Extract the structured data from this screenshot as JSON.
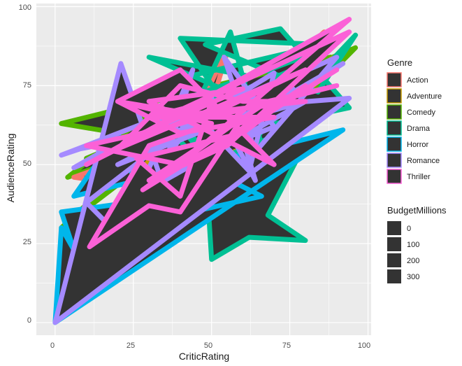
{
  "chart_data": {
    "type": "polygon",
    "xlabel": "CriticRating",
    "ylabel": "AudienceRating",
    "xlim": [
      -6,
      101
    ],
    "ylim": [
      -4,
      101
    ],
    "x_ticks": [
      0,
      25,
      50,
      75,
      100
    ],
    "y_ticks": [
      0,
      25,
      50,
      75,
      100
    ],
    "x_tick_labels": [
      "0",
      "25",
      "50",
      "75",
      "100"
    ],
    "y_tick_labels": [
      "0",
      "25",
      "50",
      "75",
      "100"
    ],
    "grid": true,
    "panel_background": "#ebebeb",
    "fill_color": "#333333",
    "legends": {
      "genre": {
        "title": "Genre",
        "position": "right",
        "entries": [
          {
            "label": "Action",
            "color": "#F8766D"
          },
          {
            "label": "Adventure",
            "color": "#C49A00"
          },
          {
            "label": "Comedy",
            "color": "#53B400"
          },
          {
            "label": "Drama",
            "color": "#00C094"
          },
          {
            "label": "Horror",
            "color": "#00B6EB"
          },
          {
            "label": "Romance",
            "color": "#A58AFF"
          },
          {
            "label": "Thriller",
            "color": "#FB61D7"
          }
        ]
      },
      "budget": {
        "title": "BudgetMillions",
        "position": "right",
        "entries": [
          "0",
          "100",
          "200",
          "300"
        ]
      }
    },
    "series": [
      {
        "name": "Comedy",
        "color": "#53B400",
        "points": [
          [
            2,
            63
          ],
          [
            20,
            60
          ],
          [
            40,
            76
          ],
          [
            62,
            66
          ],
          [
            4,
            46
          ],
          [
            30,
            66
          ],
          [
            55,
            60
          ],
          [
            85,
            88
          ],
          [
            12,
            40
          ],
          [
            45,
            55
          ],
          [
            70,
            61
          ],
          [
            96,
            87
          ],
          [
            10,
            52
          ],
          [
            60,
            70
          ],
          [
            80,
            62
          ],
          [
            24,
            48
          ],
          [
            50,
            74
          ],
          [
            2,
            30
          ],
          [
            35,
            55
          ],
          [
            72,
            68
          ],
          [
            16,
            42
          ],
          [
            88,
            84
          ]
        ]
      },
      {
        "name": "Action",
        "color": "#F8766D",
        "points": [
          [
            16,
            19
          ],
          [
            30,
            45
          ],
          [
            46,
            56
          ],
          [
            56,
            89
          ],
          [
            34,
            42
          ],
          [
            64,
            59
          ],
          [
            84,
            88
          ],
          [
            20,
            44
          ],
          [
            6,
            46
          ],
          [
            54,
            63
          ],
          [
            86,
            92
          ],
          [
            40,
            50
          ],
          [
            70,
            71
          ],
          [
            90,
            89
          ]
        ]
      },
      {
        "name": "Adventure",
        "color": "#C49A00",
        "points": [
          [
            24,
            41
          ],
          [
            40,
            69
          ],
          [
            62,
            74
          ],
          [
            82,
            84
          ],
          [
            48,
            56
          ],
          [
            92,
            86
          ],
          [
            68,
            58
          ],
          [
            32,
            45
          ],
          [
            76,
            70
          ],
          [
            56,
            72
          ],
          [
            88,
            80
          ],
          [
            44,
            53
          ]
        ]
      },
      {
        "name": "Drama",
        "color": "#00C094",
        "points": [
          [
            42,
            62
          ],
          [
            56,
            92
          ],
          [
            68,
            49
          ],
          [
            40,
            90
          ],
          [
            86,
            88
          ],
          [
            30,
            75
          ],
          [
            48,
            52
          ],
          [
            50,
            20
          ],
          [
            62,
            27
          ],
          [
            80,
            26
          ],
          [
            68,
            34
          ],
          [
            78,
            53
          ],
          [
            48,
            42
          ],
          [
            44,
            30
          ],
          [
            28,
            28
          ],
          [
            46,
            58
          ],
          [
            62,
            78
          ],
          [
            30,
            84
          ],
          [
            72,
            66
          ],
          [
            96,
            91
          ],
          [
            84,
            73
          ],
          [
            48,
            88
          ],
          [
            72,
            93
          ],
          [
            94,
            68
          ],
          [
            56,
            60
          ],
          [
            76,
            80
          ],
          [
            36,
            64
          ],
          [
            58,
            49
          ],
          [
            74,
            72
          ],
          [
            82,
            67
          ],
          [
            70,
            59
          ],
          [
            48,
            50
          ],
          [
            36,
            61
          ],
          [
            60,
            77
          ],
          [
            82,
            85
          ],
          [
            42,
            71
          ]
        ]
      },
      {
        "name": "Horror",
        "color": "#00B6EB",
        "points": [
          [
            0,
            0
          ],
          [
            92,
            61
          ],
          [
            6,
            40
          ],
          [
            20,
            60
          ],
          [
            30,
            32
          ],
          [
            66,
            40
          ],
          [
            46,
            50
          ],
          [
            60,
            46
          ],
          [
            24,
            38
          ],
          [
            2,
            35
          ],
          [
            6,
            23
          ],
          [
            2,
            30
          ],
          [
            0,
            0
          ]
        ]
      },
      {
        "name": "Romance",
        "color": "#A58AFF",
        "points": [
          [
            0,
            0
          ],
          [
            21,
            82
          ],
          [
            34,
            45
          ],
          [
            18,
            30
          ],
          [
            10,
            38
          ],
          [
            44,
            64
          ],
          [
            90,
            84
          ],
          [
            64,
            54
          ],
          [
            54,
            84
          ],
          [
            70,
            62
          ],
          [
            60,
            58
          ],
          [
            64,
            45
          ],
          [
            50,
            71
          ],
          [
            36,
            53
          ],
          [
            44,
            80
          ],
          [
            26,
            40
          ],
          [
            80,
            70
          ],
          [
            62,
            65
          ],
          [
            92,
            82
          ],
          [
            58,
            60
          ],
          [
            66,
            68
          ],
          [
            20,
            50
          ],
          [
            40,
            60
          ],
          [
            76,
            74
          ],
          [
            30,
            62
          ],
          [
            56,
            64
          ],
          [
            8,
            55
          ],
          [
            2,
            53
          ],
          [
            36,
            66
          ],
          [
            6,
            49
          ],
          [
            82,
            81
          ],
          [
            50,
            67
          ],
          [
            70,
            79
          ],
          [
            62,
            48
          ],
          [
            40,
            71
          ],
          [
            28,
            66
          ],
          [
            94,
            71
          ],
          [
            0,
            0
          ]
        ]
      },
      {
        "name": "Thriller",
        "color": "#FB61D7",
        "points": [
          [
            11,
            24
          ],
          [
            30,
            56
          ],
          [
            50,
            63
          ],
          [
            20,
            70
          ],
          [
            40,
            80
          ],
          [
            70,
            50
          ],
          [
            30,
            70
          ],
          [
            60,
            74
          ],
          [
            28,
            60
          ],
          [
            10,
            56
          ],
          [
            40,
            50
          ],
          [
            94,
            96
          ],
          [
            10,
            50
          ],
          [
            30,
            60
          ],
          [
            50,
            66
          ],
          [
            80,
            80
          ],
          [
            20,
            55
          ],
          [
            40,
            75
          ],
          [
            60,
            70
          ],
          [
            80,
            70
          ],
          [
            35,
            65
          ],
          [
            94,
            92
          ],
          [
            55,
            56
          ],
          [
            30,
            45
          ],
          [
            68,
            70
          ],
          [
            90,
            75
          ],
          [
            50,
            65
          ],
          [
            20,
            70
          ],
          [
            40,
            60
          ],
          [
            70,
            65
          ],
          [
            30,
            65
          ],
          [
            50,
            70
          ],
          [
            40,
            40
          ],
          [
            26,
            52
          ],
          [
            60,
            60
          ],
          [
            80,
            75
          ],
          [
            50,
            55
          ],
          [
            90,
            80
          ],
          [
            28,
            42
          ],
          [
            60,
            65
          ],
          [
            40,
            35
          ],
          [
            30,
            37
          ],
          [
            11,
            24
          ]
        ]
      }
    ]
  }
}
